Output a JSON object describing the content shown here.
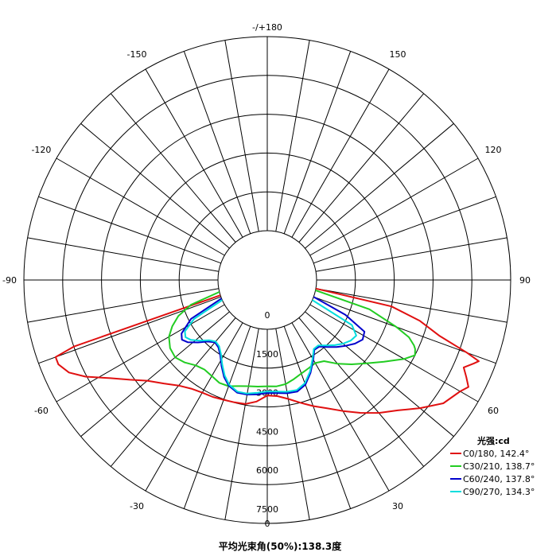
{
  "chart_data": {
    "type": "polar",
    "title": "",
    "angle_labels": [
      {
        "angle": 180,
        "label": "-/+180"
      },
      {
        "angle": -150,
        "label": "-150"
      },
      {
        "angle": 150,
        "label": "150"
      },
      {
        "angle": -120,
        "label": "-120"
      },
      {
        "angle": 120,
        "label": "120"
      },
      {
        "angle": -90,
        "label": "-90"
      },
      {
        "angle": 90,
        "label": "90"
      },
      {
        "angle": -60,
        "label": "-60"
      },
      {
        "angle": 60,
        "label": "60"
      },
      {
        "angle": -30,
        "label": "-30"
      },
      {
        "angle": 30,
        "label": "30"
      },
      {
        "angle": 0,
        "label": "0"
      }
    ],
    "radial_ticks": [
      {
        "value": 0,
        "label": "0"
      },
      {
        "value": 1500,
        "label": "1500"
      },
      {
        "value": 3000,
        "label": "3000"
      },
      {
        "value": 4500,
        "label": "4500"
      },
      {
        "value": 6000,
        "label": "6000"
      },
      {
        "value": 7500,
        "label": "7500"
      }
    ],
    "rmax": 7500,
    "grid": true,
    "legend_title": "光强:cd",
    "legend_placement": "bottom-right",
    "series": [
      {
        "name": "C0/180, 142.4°",
        "color": "#e01010",
        "angles": [
          -72,
          -71,
          -70,
          -68,
          -65,
          -62,
          -58,
          -54,
          -50,
          -45,
          -40,
          -35,
          -30,
          -25,
          -20,
          -15,
          -10,
          -5,
          0,
          5,
          10,
          15,
          20,
          25,
          30,
          35,
          40,
          45,
          50,
          55,
          60,
          62,
          64,
          66,
          68,
          69,
          70,
          72,
          75,
          78,
          80
        ],
        "values": [
          0,
          6000,
          6800,
          6800,
          6550,
          6050,
          5250,
          4650,
          4150,
          3750,
          3420,
          3220,
          3120,
          3080,
          3020,
          2990,
          2960,
          2810,
          2560,
          2600,
          2760,
          3000,
          3280,
          3560,
          3940,
          4360,
          4800,
          5220,
          5800,
          6400,
          6700,
          6900,
          6650,
          6400,
          6700,
          6850,
          6300,
          5100,
          4200,
          3000,
          0
        ]
      },
      {
        "name": "C30/210, 138.7°",
        "color": "#22cc22",
        "angles": [
          -76,
          -72,
          -68,
          -64,
          -60,
          -55,
          -50,
          -45,
          -40,
          -35,
          -30,
          -25,
          -20,
          -15,
          -10,
          -5,
          0,
          5,
          10,
          15,
          20,
          25,
          30,
          35,
          40,
          45,
          50,
          55,
          60,
          63,
          65,
          66,
          68,
          70,
          74,
          78
        ],
        "values": [
          0,
          1200,
          1800,
          2180,
          2480,
          2680,
          2740,
          2600,
          2400,
          2320,
          2380,
          2480,
          2460,
          2340,
          2260,
          2230,
          2200,
          2220,
          2180,
          2060,
          1940,
          1860,
          1800,
          1920,
          2320,
          2700,
          3100,
          3600,
          4200,
          4500,
          4400,
          4300,
          4000,
          3400,
          2200,
          0
        ]
      },
      {
        "name": "C60/240, 137.8°",
        "color": "#0000cc",
        "angles": [
          -68,
          -63,
          -58,
          -55,
          -52,
          -48,
          -44,
          -40,
          -36,
          -32,
          -28,
          -24,
          -20,
          -15,
          -10,
          -5,
          0,
          5,
          10,
          15,
          20,
          25,
          30,
          34,
          38,
          42,
          46,
          50,
          54,
          58,
          62,
          66,
          70
        ],
        "values": [
          0,
          1400,
          2000,
          2120,
          2000,
          1700,
          1400,
          1240,
          1310,
          1520,
          1860,
          2200,
          2440,
          2600,
          2590,
          2530,
          2460,
          2480,
          2540,
          2560,
          2400,
          2050,
          1650,
          1350,
          1360,
          1580,
          1820,
          2050,
          2280,
          2440,
          2350,
          1400,
          0
        ]
      },
      {
        "name": "C90/270, 134.3°",
        "color": "#00dddd",
        "angles": [
          -66,
          -62,
          -58,
          -55,
          -52,
          -48,
          -44,
          -40,
          -36,
          -32,
          -28,
          -24,
          -20,
          -15,
          -10,
          -5,
          0,
          5,
          10,
          15,
          20,
          25,
          30,
          34,
          38,
          42,
          46,
          50,
          54,
          58,
          62,
          66
        ],
        "values": [
          0,
          1300,
          1850,
          1950,
          1850,
          1600,
          1330,
          1200,
          1260,
          1470,
          1800,
          2140,
          2400,
          2560,
          2550,
          2470,
          2400,
          2420,
          2480,
          2500,
          2340,
          2000,
          1600,
          1310,
          1300,
          1500,
          1720,
          1920,
          2080,
          2150,
          1800,
          0
        ]
      }
    ]
  },
  "footer_text": "平均光束角(50%):138.3度"
}
